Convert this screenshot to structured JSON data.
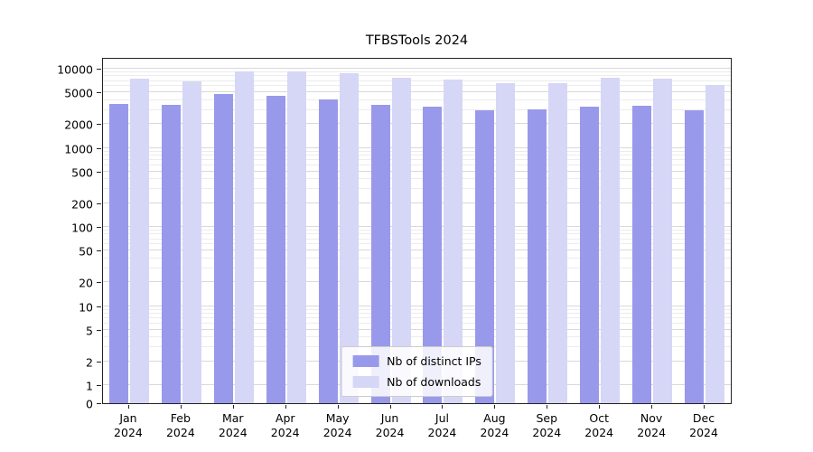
{
  "title": "TFBSTools 2024",
  "chart_data": {
    "type": "bar",
    "title": "TFBSTools 2024",
    "categories": [
      "Jan",
      "Feb",
      "Mar",
      "Apr",
      "May",
      "Jun",
      "Jul",
      "Aug",
      "Sep",
      "Oct",
      "Nov",
      "Dec"
    ],
    "year": "2024",
    "series": [
      {
        "name": "Nb of distinct IPs",
        "color": "#9999ec",
        "values": [
          3600,
          3500,
          4800,
          4600,
          4100,
          3500,
          3300,
          3000,
          3100,
          3300,
          3400,
          3000
        ]
      },
      {
        "name": "Nb of downloads",
        "color": "#d6d6f6",
        "values": [
          7500,
          6900,
          9200,
          9300,
          8800,
          7700,
          7200,
          6500,
          6600,
          7700,
          7400,
          6300
        ]
      }
    ],
    "yscale": "symlog",
    "yticks": [
      0,
      1,
      2,
      5,
      10,
      20,
      50,
      100,
      200,
      500,
      1000,
      2000,
      5000,
      10000
    ],
    "ylim": [
      0,
      13000
    ],
    "xlabel": "",
    "ylabel": "",
    "grid": true,
    "legend_position": "lower center"
  }
}
